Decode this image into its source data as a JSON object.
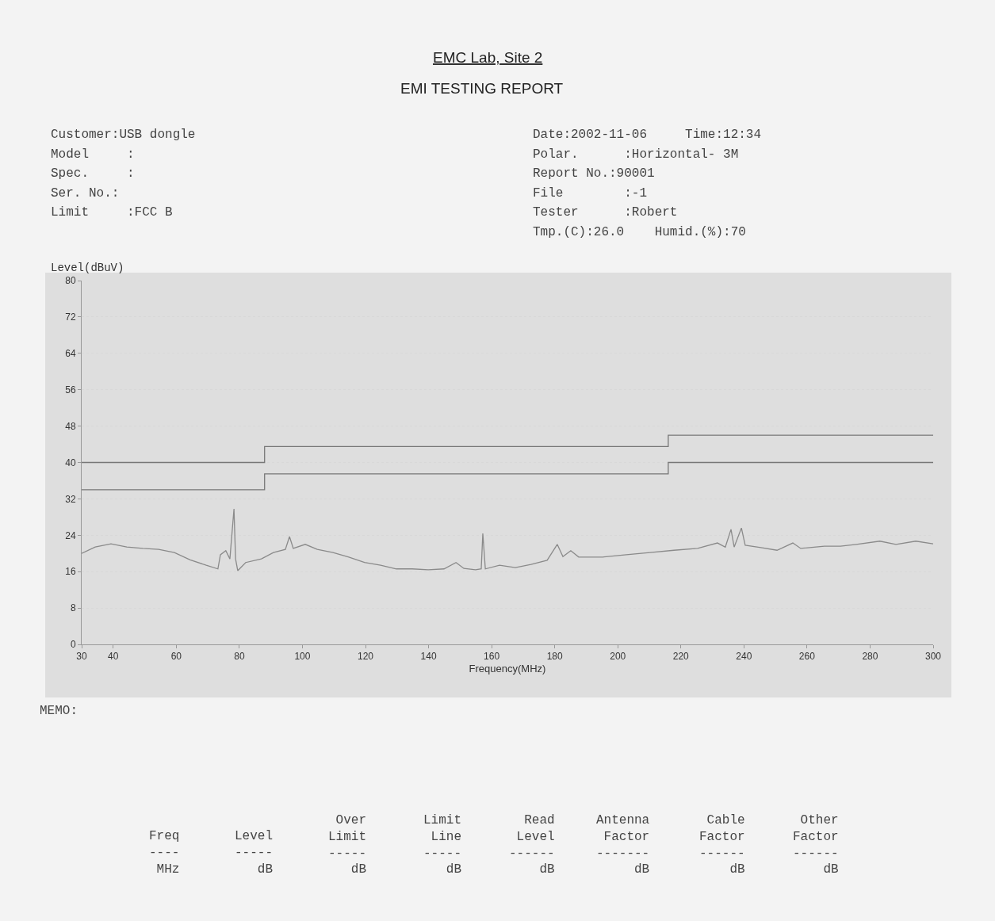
{
  "chart_data": {
    "type": "line",
    "title": "EMC Lab, Site 2",
    "subtitle": "EMI TESTING REPORT",
    "xlabel": "Frequency(MHz)",
    "ylabel": "Level(dBuV)",
    "xlim": [
      30,
      300
    ],
    "xticks": [
      30,
      40,
      60,
      80,
      100,
      120,
      140,
      160,
      180,
      200,
      220,
      240,
      260,
      280,
      300
    ],
    "ylim": [
      0,
      80
    ],
    "yticks": [
      0,
      8,
      16,
      24,
      32,
      40,
      48,
      56,
      64,
      72,
      80
    ],
    "grid": "y",
    "marker": "none",
    "line_style": "solid",
    "series": [
      {
        "type": "step",
        "color": "#777777",
        "x": [
          30,
          88,
          216,
          300
        ],
        "values": [
          40,
          43.5,
          46,
          46
        ]
      },
      {
        "type": "step",
        "color": "#777777",
        "x": [
          30,
          88,
          216,
          300
        ],
        "values": [
          34,
          37.5,
          40,
          40
        ]
      },
      {
        "color": "#8a8a8a",
        "x": [
          30,
          34.3,
          39.3,
          44.3,
          49.4,
          54.4,
          59.4,
          64.4,
          69.5,
          73.2,
          74,
          75.7,
          77,
          78.3,
          78.8,
          79.5,
          82,
          87,
          90.8,
          94.6,
          95.9,
          97.1,
          100.9,
          104.7,
          109.7,
          114.7,
          119.7,
          124.8,
          129.8,
          134.8,
          139.9,
          144.9,
          148.7,
          151.2,
          154.9,
          156.7,
          157.2,
          158,
          162.5,
          167.5,
          172.5,
          177.6,
          180.8,
          182.6,
          185.1,
          187.6,
          195.2,
          202.7,
          210.2,
          217.8,
          225.3,
          231.6,
          234.1,
          235.9,
          236.9,
          239.2,
          240.4,
          245.4,
          250.5,
          255.5,
          258,
          265.5,
          270.6,
          275.6,
          283.1,
          288.2,
          294.5,
          300
        ],
        "values": [
          20.0,
          21.4,
          22.1,
          21.4,
          21.1,
          20.9,
          20.2,
          18.6,
          17.4,
          16.6,
          19.7,
          20.6,
          18.8,
          29.8,
          18.8,
          16.2,
          18.0,
          18.8,
          20.2,
          20.9,
          23.7,
          21.1,
          22.0,
          20.9,
          20.2,
          19.2,
          18.0,
          17.4,
          16.6,
          16.6,
          16.4,
          16.6,
          18.0,
          16.7,
          16.4,
          16.6,
          24.4,
          16.6,
          17.4,
          16.9,
          17.6,
          18.5,
          22.0,
          19.3,
          20.6,
          19.2,
          19.2,
          19.7,
          20.2,
          20.7,
          21.1,
          22.3,
          21.4,
          25.3,
          21.4,
          25.6,
          21.8,
          21.3,
          20.7,
          22.3,
          21.1,
          21.6,
          21.6,
          22.0,
          22.7,
          22.0,
          22.7,
          22.1
        ]
      }
    ],
    "annotations": [
      "Customer:USB dongle",
      "Model     :",
      "Spec.     :",
      "Ser. No.:",
      "Limit     :FCC B",
      "Date:2002-11-06     Time:12:34",
      "Polar.      :Horizontal- 3M",
      "Report No.:90001",
      "File        :-1",
      "Tester      :Robert",
      "Tmp.(C):26.0    Humid.(%):70",
      "MEMO:",
      "Freq\n----\nMHz",
      "Level\n-----\ndB",
      "Over\nLimit\n-----\ndB",
      "Limit\nLine\n-----\ndB",
      "Read\nLevel\n------\ndB",
      "Antenna\nFactor\n-------\ndB",
      "Cable\nFactor\n------\ndB",
      "Other\nFactor\n------\ndB"
    ]
  }
}
